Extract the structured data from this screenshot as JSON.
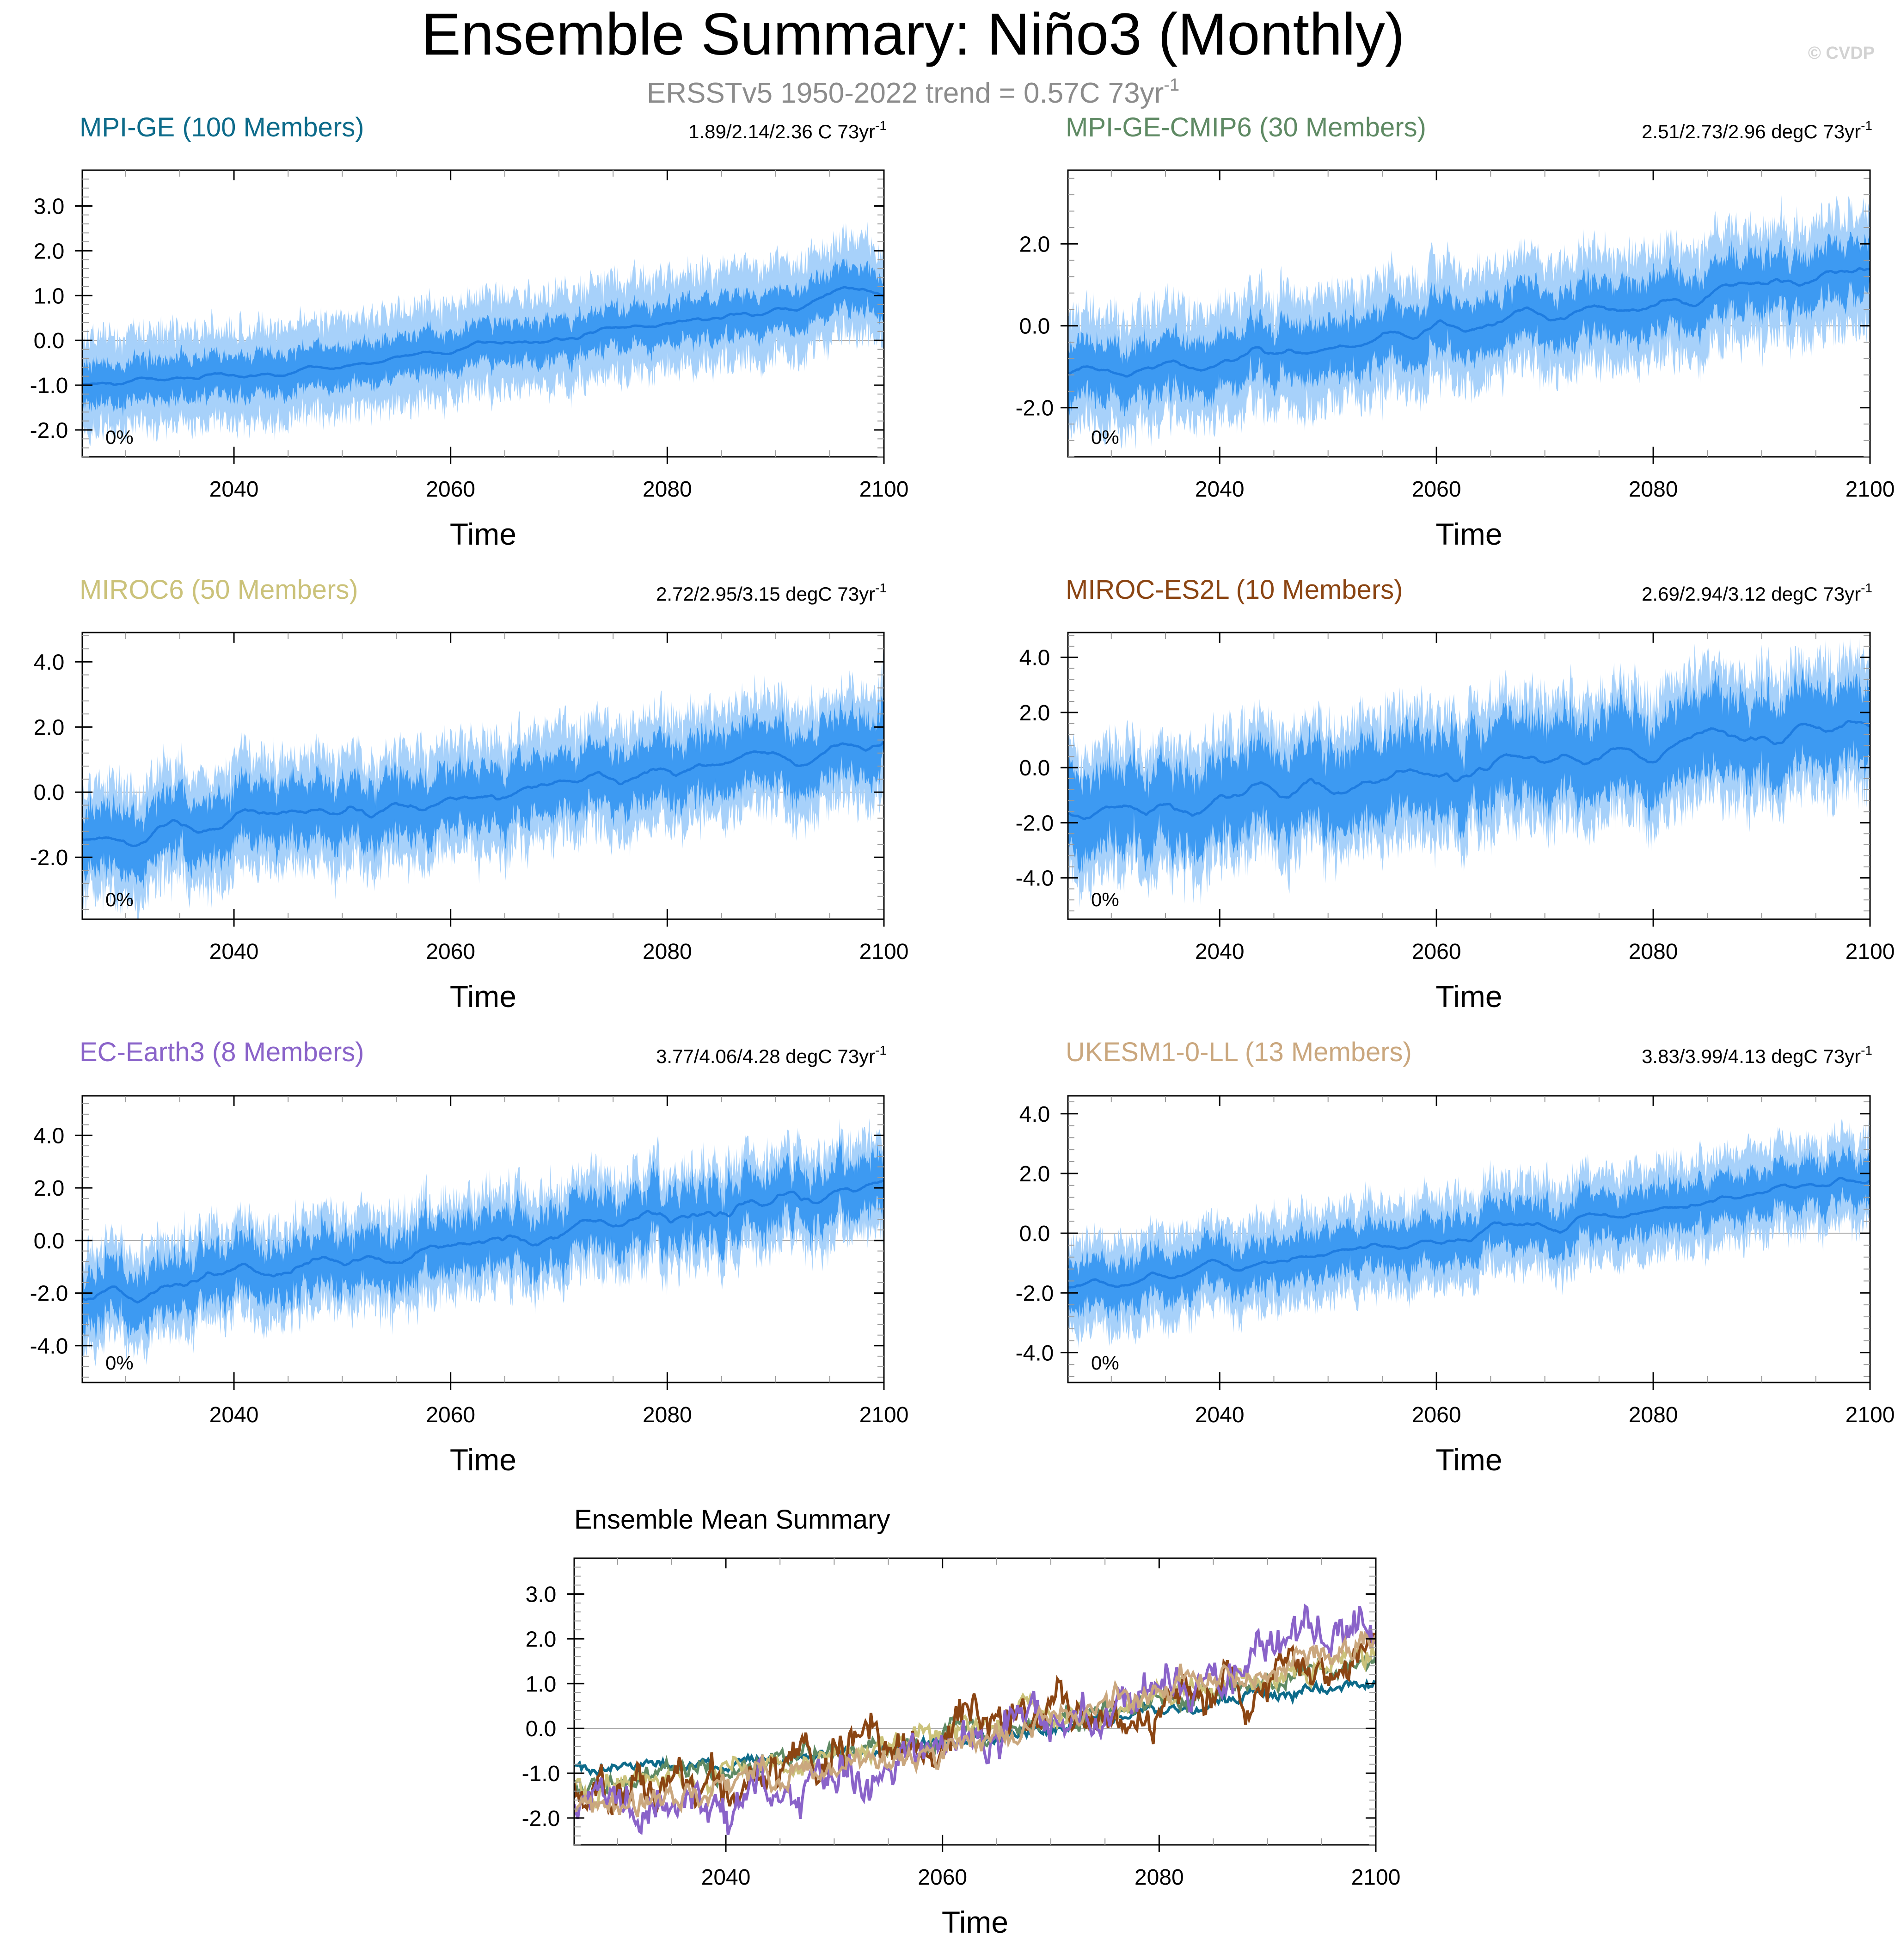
{
  "figure": {
    "title": "Ensemble Summary: Niño3 (Monthly)",
    "subtitle_main": "ERSSTv5 1950-2022 trend = 0.57C 73yr",
    "subtitle_sup": "-1",
    "watermark": "© CVDP"
  },
  "colors": {
    "band_outer": "#a7d1fa",
    "band_inner": "#3d9af2",
    "mean_line": "#1e7ce0",
    "axis": "#000000",
    "minor_tick": "#9a9a9a",
    "zero_line": "#aaaaaa",
    "subtitle": "#8c8c8c",
    "watermark": "#d2d2d2"
  },
  "chart_data": [
    {
      "type": "area",
      "title": "MPI-GE (100 Members)",
      "title_color": "#0d6b8a",
      "trend_text": "1.89/2.14/2.36 C 73yr",
      "trend_sup": "-1",
      "percent_label": "0%",
      "xlabel": "Time",
      "xlim": [
        2026,
        2100
      ],
      "xticks": [
        2040,
        2060,
        2080,
        2100
      ],
      "ylim": [
        -2.6,
        3.8
      ],
      "yticks": [
        -2.0,
        -1.0,
        0.0,
        1.0,
        2.0,
        3.0
      ],
      "ytick_labels": [
        "-2.0",
        "-1.0",
        "0.0",
        "1.0",
        "2.0",
        "3.0"
      ],
      "mean_anchors": {
        "x": [
          2026,
          2035,
          2045,
          2055,
          2065,
          2075,
          2085,
          2093,
          2096,
          2100
        ],
        "y": [
          -1.0,
          -0.8,
          -0.6,
          -0.4,
          -0.1,
          0.2,
          0.5,
          0.8,
          1.2,
          1.0
        ]
      },
      "inner_halfwidth": 0.45,
      "outer_halfwidth": 1.0,
      "noise_amplitude": 0.15,
      "seed": 11
    },
    {
      "type": "area",
      "title": "MPI-GE-CMIP6 (30 Members)",
      "title_color": "#5f8a64",
      "trend_text": "2.51/2.73/2.96 degC 73yr",
      "trend_sup": "-1",
      "percent_label": "0%",
      "xlabel": "Time",
      "xlim": [
        2026,
        2100
      ],
      "xticks": [
        2040,
        2060,
        2080,
        2100
      ],
      "ylim": [
        -3.2,
        3.8
      ],
      "yticks": [
        -2.0,
        0.0,
        2.0
      ],
      "ytick_labels": [
        "-2.0",
        "0.0",
        "2.0"
      ],
      "mean_anchors": {
        "x": [
          2026,
          2035,
          2045,
          2055,
          2065,
          2075,
          2085,
          2095,
          2100
        ],
        "y": [
          -1.2,
          -1.0,
          -0.7,
          -0.3,
          0.1,
          0.4,
          0.8,
          1.3,
          1.5
        ]
      },
      "inner_halfwidth": 0.65,
      "outer_halfwidth": 1.3,
      "noise_amplitude": 0.25,
      "seed": 23
    },
    {
      "type": "area",
      "title": "MIROC6 (50 Members)",
      "title_color": "#cbc27a",
      "trend_text": "2.72/2.95/3.15 degC 73yr",
      "trend_sup": "-1",
      "percent_label": "0%",
      "xlabel": "Time",
      "xlim": [
        2026,
        2100
      ],
      "xticks": [
        2040,
        2060,
        2080,
        2100
      ],
      "ylim": [
        -3.9,
        4.9
      ],
      "yticks": [
        -2.0,
        0.0,
        2.0,
        4.0
      ],
      "ytick_labels": [
        "-2.0",
        "0.0",
        "2.0",
        "4.0"
      ],
      "mean_anchors": {
        "x": [
          2026,
          2035,
          2045,
          2055,
          2065,
          2075,
          2085,
          2095,
          2100
        ],
        "y": [
          -1.4,
          -1.1,
          -0.8,
          -0.4,
          0.0,
          0.4,
          0.9,
          1.4,
          1.6
        ]
      },
      "inner_halfwidth": 0.9,
      "outer_halfwidth": 1.6,
      "noise_amplitude": 0.35,
      "seed": 37
    },
    {
      "type": "area",
      "title": "MIROC-ES2L (10 Members)",
      "title_color": "#8b4513",
      "trend_text": "2.69/2.94/3.12 degC 73yr",
      "trend_sup": "-1",
      "percent_label": "0%",
      "xlabel": "Time",
      "xlim": [
        2026,
        2100
      ],
      "xticks": [
        2040,
        2060,
        2080,
        2100
      ],
      "ylim": [
        -5.5,
        4.9
      ],
      "yticks": [
        -4.0,
        -2.0,
        0.0,
        2.0,
        4.0
      ],
      "ytick_labels": [
        "-4.0",
        "-2.0",
        "0.0",
        "2.0",
        "4.0"
      ],
      "mean_anchors": {
        "x": [
          2026,
          2035,
          2045,
          2055,
          2065,
          2075,
          2085,
          2095,
          2100
        ],
        "y": [
          -1.8,
          -1.4,
          -1.0,
          -0.5,
          0.0,
          0.4,
          0.9,
          1.4,
          1.6
        ]
      },
      "inner_halfwidth": 1.4,
      "outer_halfwidth": 2.2,
      "noise_amplitude": 0.5,
      "seed": 41
    },
    {
      "type": "area",
      "title": "EC-Earth3 (8 Members)",
      "title_color": "#8a63c9",
      "trend_text": "3.77/4.06/4.28 degC 73yr",
      "trend_sup": "-1",
      "percent_label": "0%",
      "xlabel": "Time",
      "xlim": [
        2026,
        2100
      ],
      "xticks": [
        2040,
        2060,
        2080,
        2100
      ],
      "ylim": [
        -5.4,
        5.5
      ],
      "yticks": [
        -4.0,
        -2.0,
        0.0,
        2.0,
        4.0
      ],
      "ytick_labels": [
        "-4.0",
        "-2.0",
        "0.0",
        "2.0",
        "4.0"
      ],
      "mean_anchors": {
        "x": [
          2026,
          2035,
          2045,
          2055,
          2065,
          2075,
          2085,
          2095,
          2100
        ],
        "y": [
          -2.0,
          -1.6,
          -1.1,
          -0.6,
          0.0,
          0.6,
          1.2,
          1.9,
          2.3
        ]
      },
      "inner_halfwidth": 1.0,
      "outer_halfwidth": 1.7,
      "noise_amplitude": 0.5,
      "seed": 53
    },
    {
      "type": "area",
      "title": "UKESM1-0-LL (13 Members)",
      "title_color": "#caa77e",
      "trend_text": "3.83/3.99/4.13 degC 73yr",
      "trend_sup": "-1",
      "percent_label": "0%",
      "xlabel": "Time",
      "xlim": [
        2026,
        2100
      ],
      "xticks": [
        2040,
        2060,
        2080,
        2100
      ],
      "ylim": [
        -5.0,
        4.6
      ],
      "yticks": [
        -4.0,
        -2.0,
        0.0,
        2.0,
        4.0
      ],
      "ytick_labels": [
        "-4.0",
        "-2.0",
        "0.0",
        "2.0",
        "4.0"
      ],
      "mean_anchors": {
        "x": [
          2026,
          2035,
          2045,
          2055,
          2065,
          2075,
          2085,
          2095,
          2100
        ],
        "y": [
          -1.9,
          -1.5,
          -1.0,
          -0.5,
          0.0,
          0.6,
          1.1,
          1.7,
          1.9
        ]
      },
      "inner_halfwidth": 0.75,
      "outer_halfwidth": 1.4,
      "noise_amplitude": 0.3,
      "seed": 67
    },
    {
      "type": "line",
      "title": "Ensemble Mean Summary",
      "title_color": "#000000",
      "xlabel": "Time",
      "xlim": [
        2026,
        2100
      ],
      "xticks": [
        2040,
        2060,
        2080,
        2100
      ],
      "ylim": [
        -2.6,
        3.8
      ],
      "yticks": [
        -2.0,
        -1.0,
        0.0,
        1.0,
        2.0,
        3.0
      ],
      "ytick_labels": [
        "-2.0",
        "-1.0",
        "0.0",
        "1.0",
        "2.0",
        "3.0"
      ],
      "series": [
        {
          "name": "MPI-GE",
          "color": "#0d6b8a",
          "noise": 0.12,
          "seed": 101,
          "anchors": {
            "x": [
              2026,
              2040,
              2060,
              2080,
              2100
            ],
            "y": [
              -0.8,
              -0.8,
              -0.3,
              0.4,
              1.0
            ]
          }
        },
        {
          "name": "MPI-GE-CMIP6",
          "color": "#5f8a64",
          "noise": 0.2,
          "seed": 103,
          "anchors": {
            "x": [
              2026,
              2040,
              2060,
              2080,
              2100
            ],
            "y": [
              -1.2,
              -0.9,
              -0.2,
              0.6,
              1.5
            ]
          }
        },
        {
          "name": "MIROC6",
          "color": "#cbc27a",
          "noise": 0.25,
          "seed": 107,
          "anchors": {
            "x": [
              2026,
              2040,
              2060,
              2080,
              2100
            ],
            "y": [
              -1.4,
              -1.0,
              -0.2,
              0.6,
              1.6
            ]
          }
        },
        {
          "name": "MIROC-ES2L",
          "color": "#8b4513",
          "noise": 0.45,
          "seed": 109,
          "anchors": {
            "x": [
              2026,
              2040,
              2060,
              2080,
              2100
            ],
            "y": [
              -1.6,
              -1.1,
              -0.1,
              0.7,
              1.6
            ]
          }
        },
        {
          "name": "EC-Earth3",
          "color": "#8a63c9",
          "noise": 0.45,
          "seed": 113,
          "anchors": {
            "x": [
              2026,
              2040,
              2060,
              2080,
              2100
            ],
            "y": [
              -1.9,
              -1.5,
              -0.5,
              0.9,
              2.3
            ]
          }
        },
        {
          "name": "UKESM1-0-LL",
          "color": "#caa77e",
          "noise": 0.28,
          "seed": 127,
          "anchors": {
            "x": [
              2026,
              2040,
              2060,
              2080,
              2100
            ],
            "y": [
              -1.9,
              -1.4,
              -0.5,
              0.9,
              1.9
            ]
          }
        }
      ]
    }
  ]
}
